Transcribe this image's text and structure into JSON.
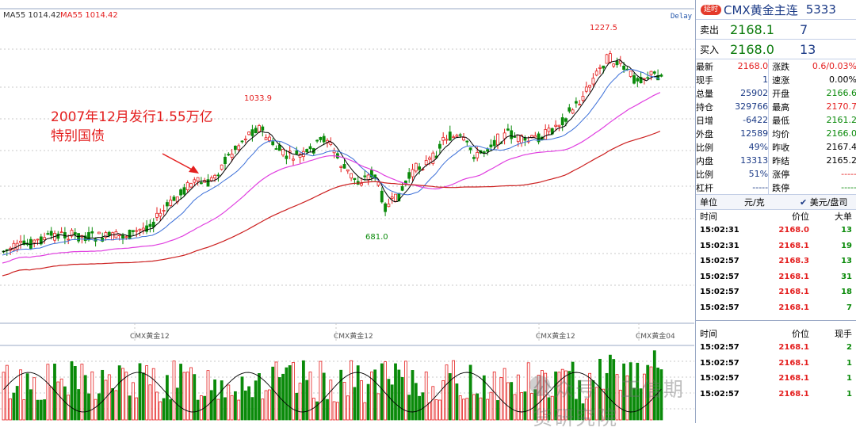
{
  "chart": {
    "ma_labels": [
      {
        "text": "MA55 1014.42",
        "color": "#333333"
      },
      {
        "text": "MA55 1014.42",
        "color": "#e41f1f"
      }
    ],
    "delay_label": "Delay",
    "annotation": [
      "2007年12月发行1.55万亿",
      "特别国债"
    ],
    "price_labels": {
      "high": "1227.5",
      "mid_high": "1033.9",
      "low": "681.0"
    },
    "contract_labels": [
      "CMX黄金12",
      "CMX黄金12",
      "CMX黄金12",
      "CMX黄金04"
    ],
    "watermark": "公众号 · 正信期货研究院",
    "colors": {
      "up": "#e41f1f",
      "down": "#0a8a0a",
      "ma_black": "#000000",
      "ma_blue": "#3b6fd8",
      "ma_pink": "#e040e0",
      "ma_red": "#cc2020",
      "grid": "#c8c8c8"
    }
  },
  "panel": {
    "badge": "延时",
    "title": "CMX黄金主连",
    "code": "5333",
    "sell": {
      "label": "卖出",
      "price": "2168.1",
      "volume": "7"
    },
    "buy": {
      "label": "买入",
      "price": "2168.0",
      "volume": "13"
    },
    "stats": [
      {
        "k1": "最新",
        "v1": "2168.0",
        "c1": "red",
        "k2": "涨跌",
        "v2": "0.6/0.03%",
        "c2": "red"
      },
      {
        "k1": "现手",
        "v1": "1",
        "c1": "blue",
        "k2": "速涨",
        "v2": "0.00%",
        "c2": "black"
      },
      {
        "k1": "总量",
        "v1": "25902",
        "c1": "blue",
        "k2": "开盘",
        "v2": "2166.6",
        "c2": "green"
      },
      {
        "k1": "持仓",
        "v1": "329766",
        "c1": "blue",
        "k2": "最高",
        "v2": "2170.7",
        "c2": "red"
      },
      {
        "k1": "日增",
        "v1": "-6422",
        "c1": "blue",
        "k2": "最低",
        "v2": "2161.2",
        "c2": "green"
      },
      {
        "k1": "外盘",
        "v1": "12589",
        "c1": "blue",
        "k2": "均价",
        "v2": "2166.0",
        "c2": "green"
      },
      {
        "k1": "比例",
        "v1": "49%",
        "c1": "blue",
        "k2": "昨收",
        "v2": "2167.4",
        "c2": "black"
      },
      {
        "k1": "内盘",
        "v1": "13313",
        "c1": "blue",
        "k2": "昨结",
        "v2": "2165.2",
        "c2": "black"
      },
      {
        "k1": "比例",
        "v1": "51%",
        "c1": "blue",
        "k2": "涨停",
        "v2": "-----",
        "c2": "red"
      },
      {
        "k1": "杠杆",
        "v1": "-----",
        "c1": "blue",
        "k2": "跌停",
        "v2": "-----",
        "c2": "green"
      }
    ],
    "unit_label": "单位",
    "unit_value": "元/克",
    "currency_option": "美元/盘司",
    "trades_header": {
      "time": "时间",
      "price": "价位",
      "size": "大单"
    },
    "trades": [
      {
        "time": "15:02:31",
        "price": "2168.0",
        "size": "13"
      },
      {
        "time": "15:02:31",
        "price": "2168.1",
        "size": "19"
      },
      {
        "time": "15:02:57",
        "price": "2168.3",
        "size": "13"
      },
      {
        "time": "15:02:57",
        "price": "2168.1",
        "size": "31"
      },
      {
        "time": "15:02:57",
        "price": "2168.1",
        "size": "18"
      },
      {
        "time": "15:02:57",
        "price": "2168.1",
        "size": "7"
      }
    ],
    "ticks_header": {
      "time": "时间",
      "price": "价位",
      "size": "现手"
    },
    "ticks": [
      {
        "time": "15:02:57",
        "price": "2168.1",
        "size": "2"
      },
      {
        "time": "15:02:57",
        "price": "2168.1",
        "size": "1"
      },
      {
        "time": "15:02:57",
        "price": "2168.1",
        "size": "1"
      },
      {
        "time": "15:02:57",
        "price": "2168.1",
        "size": "1"
      }
    ]
  }
}
